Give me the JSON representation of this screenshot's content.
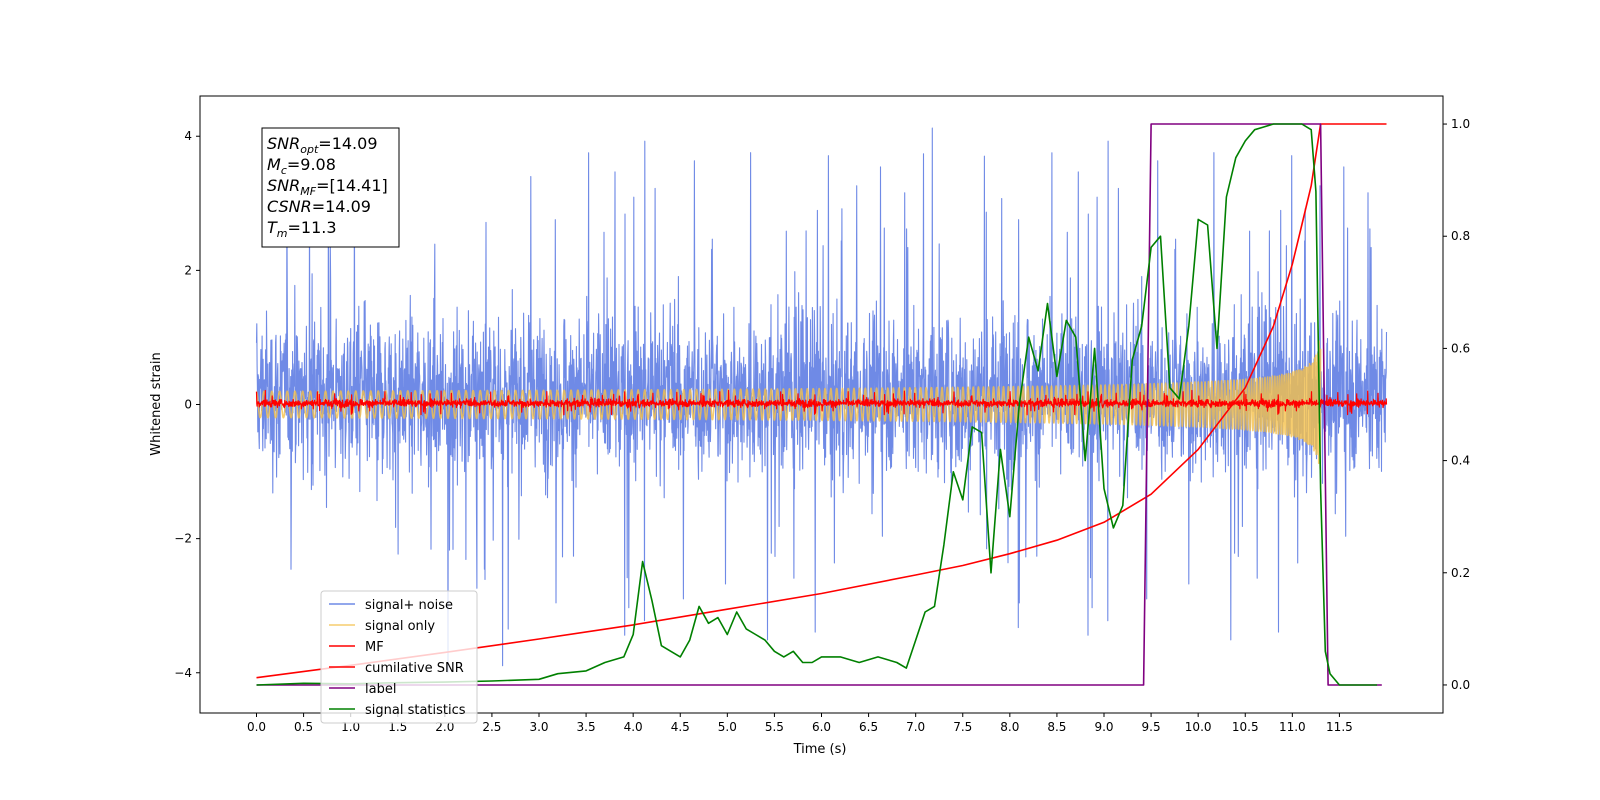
{
  "chart_data": {
    "type": "line",
    "xlabel": "Time (s)",
    "ylabel": "Whitened strain",
    "xlim": [
      -0.6,
      12.6
    ],
    "ylim": [
      -4.6,
      4.6
    ],
    "y2lim": [
      -0.05,
      1.05
    ],
    "x_ticks": [
      "0.0",
      "0.5",
      "1.0",
      "1.5",
      "2.0",
      "2.5",
      "3.0",
      "3.5",
      "4.0",
      "4.5",
      "5.0",
      "5.5",
      "6.0",
      "6.5",
      "7.0",
      "7.5",
      "8.0",
      "8.5",
      "9.0",
      "9.5",
      "10.0",
      "10.5",
      "11.0",
      "11.5"
    ],
    "y_ticks": [
      "4",
      "2",
      "0",
      "−2",
      "−4"
    ],
    "y2_ticks": [
      "1.0",
      "0.8",
      "0.6",
      "0.4",
      "0.2",
      "0.0"
    ],
    "annotation": {
      "lines": [
        {
          "sym": "SNR",
          "sub": "opt",
          "val": "=14.09"
        },
        {
          "sym": "M",
          "sub": "c",
          "val": "=9.08"
        },
        {
          "sym": "SNR",
          "sub": "MF",
          "val": "=[14.41]"
        },
        {
          "sym": "CSNR",
          "sub": "",
          "val": "=14.09"
        },
        {
          "sym": "T",
          "sub": "m",
          "val": "=11.3"
        }
      ]
    },
    "legend": {
      "placement": "lower-left",
      "entries": [
        "signal+ noise",
        "signal only",
        "MF",
        "cumilative SNR",
        "label",
        "signal statistics"
      ]
    },
    "series": [
      {
        "name": "signal+ noise",
        "axis": "left",
        "color": "#6f8ae6",
        "kind": "noise",
        "x_range": [
          0,
          12.0
        ],
        "amplitude_sd": 1.05,
        "offset": 0.15
      },
      {
        "name": "signal only",
        "axis": "left",
        "color": "#f5c04a",
        "kind": "chirp",
        "x_range": [
          0,
          11.3
        ],
        "peak_amplitude": 0.95
      },
      {
        "name": "MF",
        "axis": "left",
        "color": "#ff0000",
        "kind": "noise",
        "x_range": [
          0,
          12.0
        ],
        "amplitude_sd": 0.05,
        "offset": 0.02
      },
      {
        "name": "cumilative SNR",
        "axis": "right",
        "x": [
          0.0,
          1.0,
          2.0,
          3.0,
          4.0,
          5.0,
          6.0,
          7.0,
          7.5,
          8.0,
          8.5,
          9.0,
          9.5,
          10.0,
          10.5,
          10.8,
          11.0,
          11.1,
          11.2,
          11.3,
          11.4,
          12.0
        ],
        "y": [
          0.013,
          0.035,
          0.058,
          0.082,
          0.107,
          0.135,
          0.163,
          0.196,
          0.213,
          0.234,
          0.258,
          0.29,
          0.34,
          0.42,
          0.53,
          0.64,
          0.75,
          0.82,
          0.89,
          1.0,
          1.0,
          1.0
        ],
        "color": "#ff0000"
      },
      {
        "name": "label",
        "axis": "right",
        "x": [
          0.0,
          9.42,
          9.5,
          11.3,
          11.38,
          11.95
        ],
        "y": [
          0.0,
          0.0,
          1.0,
          1.0,
          0.0,
          0.0
        ],
        "color": "#800080"
      },
      {
        "name": "signal statistics",
        "axis": "right",
        "x": [
          0.0,
          0.5,
          1.0,
          1.5,
          2.0,
          2.5,
          3.0,
          3.2,
          3.5,
          3.7,
          3.9,
          4.0,
          4.1,
          4.2,
          4.3,
          4.4,
          4.5,
          4.6,
          4.7,
          4.8,
          4.9,
          5.0,
          5.1,
          5.2,
          5.3,
          5.4,
          5.5,
          5.6,
          5.7,
          5.8,
          5.9,
          6.0,
          6.2,
          6.4,
          6.6,
          6.8,
          6.9,
          7.0,
          7.1,
          7.2,
          7.3,
          7.4,
          7.5,
          7.6,
          7.7,
          7.8,
          7.9,
          8.0,
          8.1,
          8.2,
          8.3,
          8.4,
          8.5,
          8.6,
          8.7,
          8.8,
          8.9,
          9.0,
          9.1,
          9.2,
          9.3,
          9.4,
          9.5,
          9.6,
          9.7,
          9.8,
          9.9,
          10.0,
          10.1,
          10.2,
          10.3,
          10.4,
          10.5,
          10.6,
          10.7,
          10.8,
          10.9,
          11.0,
          11.1,
          11.2,
          11.25,
          11.3,
          11.35,
          11.4,
          11.5,
          11.9
        ],
        "y": [
          0.0,
          0.003,
          0.002,
          0.004,
          0.005,
          0.007,
          0.01,
          0.02,
          0.025,
          0.04,
          0.05,
          0.09,
          0.22,
          0.15,
          0.07,
          0.06,
          0.05,
          0.08,
          0.14,
          0.11,
          0.12,
          0.09,
          0.13,
          0.1,
          0.09,
          0.08,
          0.06,
          0.05,
          0.06,
          0.04,
          0.04,
          0.05,
          0.05,
          0.04,
          0.05,
          0.04,
          0.03,
          0.08,
          0.13,
          0.14,
          0.25,
          0.38,
          0.33,
          0.46,
          0.45,
          0.2,
          0.42,
          0.3,
          0.5,
          0.62,
          0.56,
          0.68,
          0.55,
          0.65,
          0.62,
          0.4,
          0.6,
          0.35,
          0.28,
          0.32,
          0.58,
          0.64,
          0.78,
          0.8,
          0.53,
          0.51,
          0.64,
          0.83,
          0.82,
          0.6,
          0.87,
          0.94,
          0.97,
          0.99,
          0.995,
          1.0,
          1.0,
          1.0,
          1.0,
          0.99,
          0.88,
          0.35,
          0.06,
          0.02,
          0.0,
          0.0
        ],
        "color": "#008000"
      }
    ]
  }
}
